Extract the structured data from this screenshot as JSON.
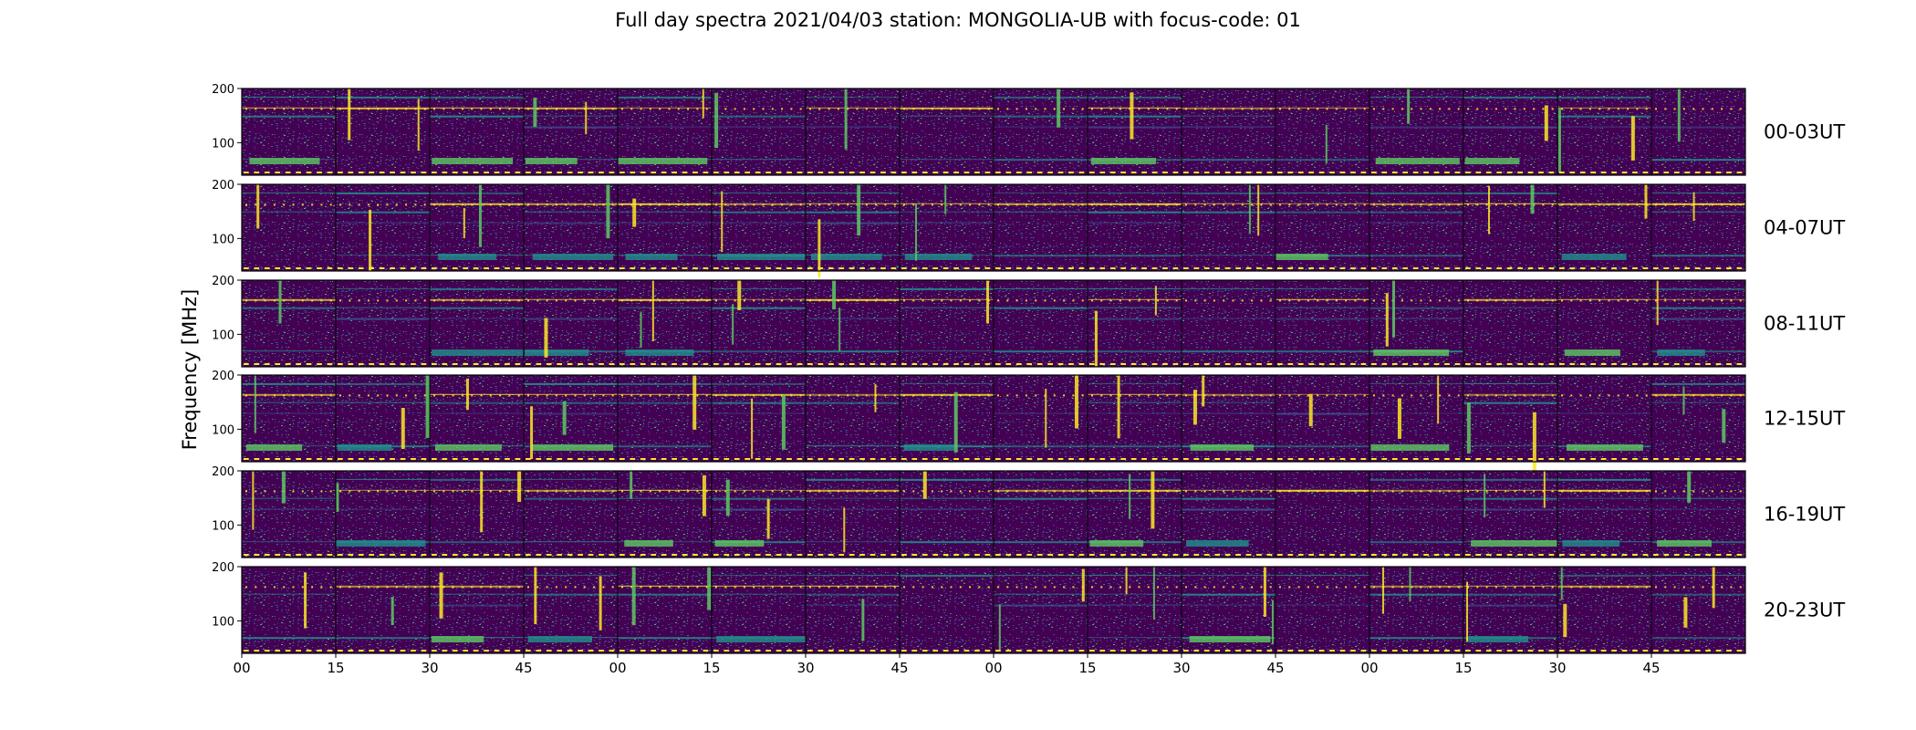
{
  "title": "Full day spectra 2021/04/03 station: MONGOLIA-UB with focus-code: 01",
  "colors": {
    "viridis_dark": "#440154",
    "viridis_mid": "#3b528b",
    "viridis_teal": "#21918c",
    "viridis_green": "#5ec962",
    "viridis_yellow": "#fde725",
    "frame": "#000000"
  },
  "chart_data": {
    "type": "heatmap",
    "title": "Full day spectra 2021/04/03 station: MONGOLIA-UB with focus-code: 01",
    "xlabel": "",
    "ylabel": "Frequency [MHz]",
    "colormap": "viridis",
    "panels_per_row": 16,
    "panel_minutes": 15,
    "y_ticks": [
      100,
      200
    ],
    "x_ticks": [
      "00",
      "15",
      "30",
      "45",
      "00",
      "15",
      "30",
      "45",
      "00",
      "15",
      "30",
      "45",
      "00",
      "15",
      "30",
      "45"
    ],
    "rows": [
      {
        "label": "00-03UT",
        "hours": [
          0,
          1,
          2,
          3
        ]
      },
      {
        "label": "04-07UT",
        "hours": [
          4,
          5,
          6,
          7
        ]
      },
      {
        "label": "08-11UT",
        "hours": [
          8,
          9,
          10,
          11
        ]
      },
      {
        "label": "12-15UT",
        "hours": [
          12,
          13,
          14,
          15
        ]
      },
      {
        "label": "16-19UT",
        "hours": [
          16,
          17,
          18,
          19
        ]
      },
      {
        "label": "20-23UT",
        "hours": [
          20,
          21,
          22,
          23
        ]
      }
    ]
  }
}
